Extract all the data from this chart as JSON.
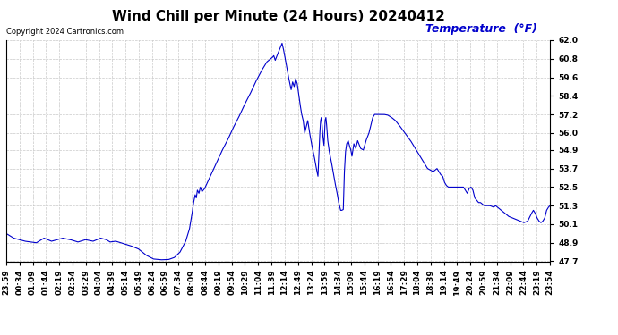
{
  "title": "Wind Chill per Minute (24 Hours) 20240412",
  "copyright": "Copyright 2024 Cartronics.com",
  "legend_label": "Temperature  (°F)",
  "line_color": "#0000cc",
  "background_color": "#ffffff",
  "plot_bg_color": "#ffffff",
  "grid_color": "#bbbbbb",
  "ylim": [
    47.7,
    62.0
  ],
  "yticks": [
    47.7,
    48.9,
    50.1,
    51.3,
    52.5,
    53.7,
    54.9,
    56.0,
    57.2,
    58.4,
    59.6,
    60.8,
    62.0
  ],
  "x_labels": [
    "23:59",
    "00:34",
    "01:09",
    "01:44",
    "02:19",
    "02:54",
    "03:29",
    "04:04",
    "04:39",
    "05:14",
    "05:49",
    "06:24",
    "06:59",
    "07:34",
    "08:09",
    "08:44",
    "09:19",
    "09:54",
    "10:29",
    "11:04",
    "11:39",
    "12:14",
    "12:49",
    "13:24",
    "13:59",
    "14:34",
    "15:09",
    "15:44",
    "16:19",
    "16:54",
    "17:29",
    "18:04",
    "18:39",
    "19:14",
    "19:49",
    "20:24",
    "20:59",
    "21:34",
    "22:09",
    "22:44",
    "23:19",
    "23:54"
  ],
  "title_fontsize": 11,
  "tick_fontsize": 6.5,
  "legend_fontsize": 9,
  "copyright_fontsize": 6
}
